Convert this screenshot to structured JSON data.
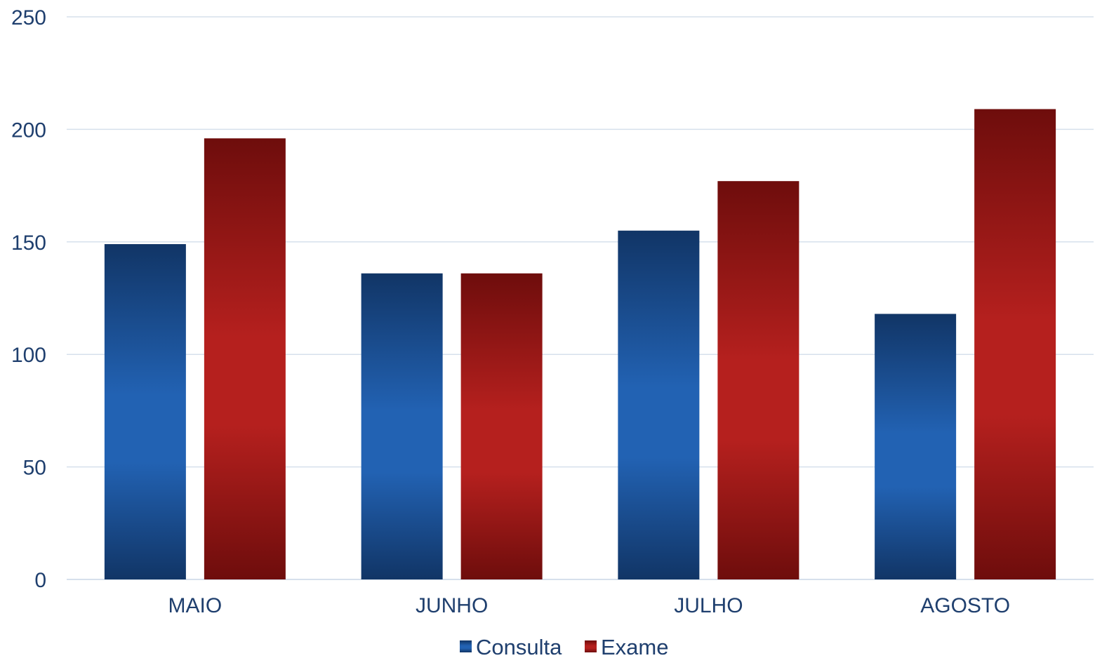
{
  "chart_data": {
    "type": "bar",
    "title": "",
    "xlabel": "",
    "ylabel": "",
    "categories": [
      "MAIO",
      "JUNHO",
      "JULHO",
      "AGOSTO"
    ],
    "series": [
      {
        "name": "Consulta",
        "color": "#2262b3",
        "values": [
          149,
          136,
          155,
          118
        ]
      },
      {
        "name": "Exame",
        "color": "#b5201e",
        "values": [
          196,
          136,
          177,
          209
        ]
      }
    ],
    "ylim": [
      0,
      250
    ],
    "yticks": [
      0,
      50,
      100,
      150,
      200,
      250
    ],
    "grid": true,
    "legend_position": "bottom"
  }
}
